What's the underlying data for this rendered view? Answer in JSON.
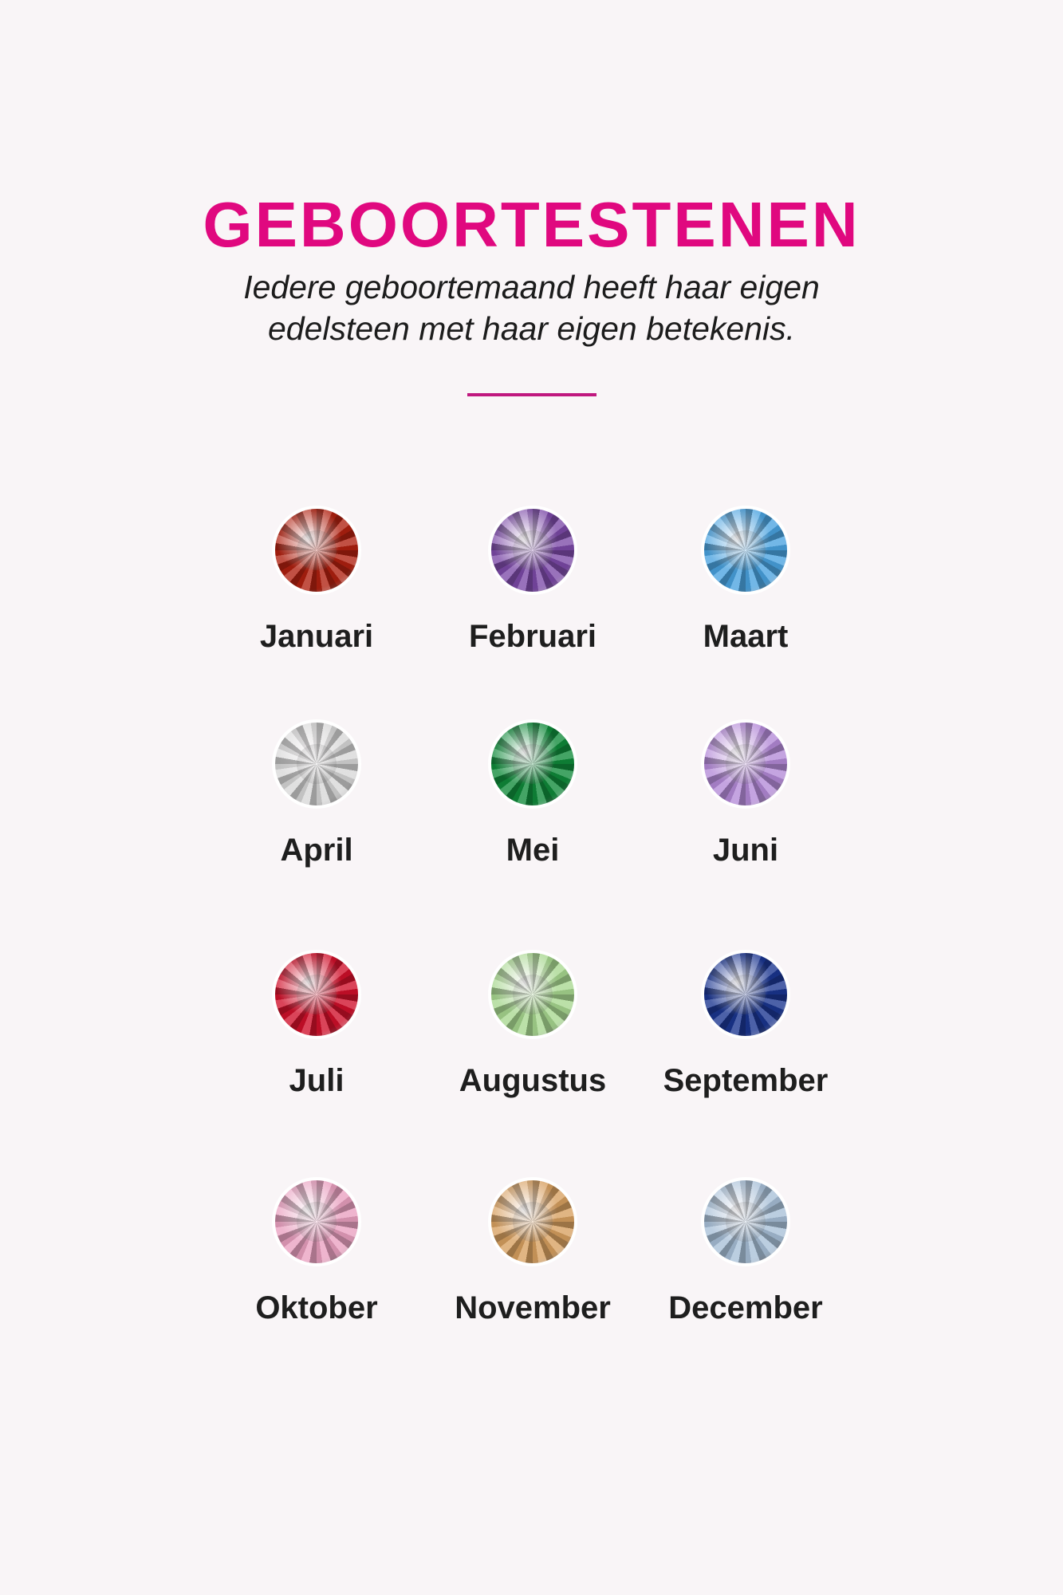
{
  "title": "GEBOORTESTENEN",
  "subtitle": {
    "line1": "Iedere geboortemaand heeft haar eigen",
    "line2": "edelsteen met haar eigen betekenis."
  },
  "colors": {
    "accent": "#e0087f",
    "background": "#f9f5f7",
    "text": "#1e1e1e"
  },
  "months": [
    {
      "label": "Januari",
      "color": "#b0200f"
    },
    {
      "label": "Februari",
      "color": "#7c4aa8"
    },
    {
      "label": "Maart",
      "color": "#4aa3e0"
    },
    {
      "label": "April",
      "color": "#d8d8d8"
    },
    {
      "label": "Mei",
      "color": "#0f8a3a"
    },
    {
      "label": "Juni",
      "color": "#b48ad8"
    },
    {
      "label": "Juli",
      "color": "#d0102a"
    },
    {
      "label": "Augustus",
      "color": "#a8d890"
    },
    {
      "label": "September",
      "color": "#1a3590"
    },
    {
      "label": "Oktober",
      "color": "#eaa0c0"
    },
    {
      "label": "November",
      "color": "#d8a060"
    },
    {
      "label": "December",
      "color": "#a8c0d8"
    }
  ]
}
